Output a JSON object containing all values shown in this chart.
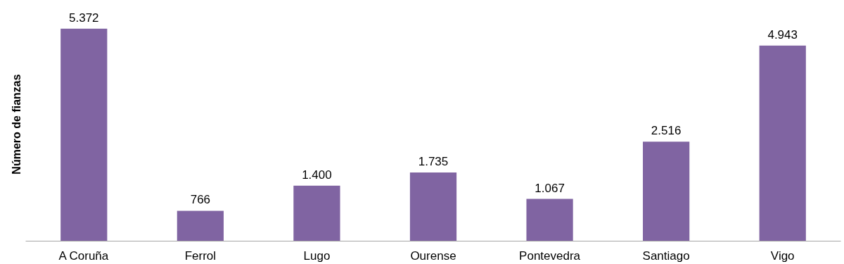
{
  "chart_data": {
    "type": "bar",
    "ylabel": "Número de fianzas",
    "categories": [
      "A Coruña",
      "Ferrol",
      "Lugo",
      "Ourense",
      "Pontevedra",
      "Santiago",
      "Vigo"
    ],
    "values": [
      5372,
      766,
      1400,
      1735,
      1067,
      2516,
      4943
    ],
    "value_labels": [
      "5.372",
      "766",
      "1.400",
      "1.735",
      "1.067",
      "2.516",
      "4.943"
    ],
    "color": "#8064a2"
  }
}
